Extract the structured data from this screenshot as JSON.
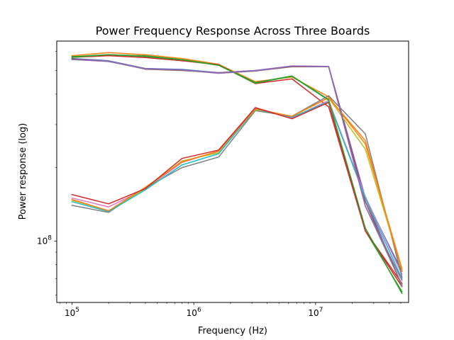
{
  "chart_data": {
    "type": "line",
    "title": "Power Frequency Response Across Three Boards",
    "xlabel": "Frequency (Hz)",
    "ylabel": "Power response (log)",
    "xscale": "log",
    "yscale": "log",
    "xlim": [
      75000,
      58000000
    ],
    "ylim": [
      56000000,
      660000000
    ],
    "grid": false,
    "legend": "none",
    "x_ticks": [
      {
        "value": 100000,
        "base": "10",
        "exp": "5"
      },
      {
        "value": 1000000,
        "base": "10",
        "exp": "6"
      },
      {
        "value": 10000000,
        "base": "10",
        "exp": "7"
      }
    ],
    "y_ticks": [
      {
        "value": 100000000,
        "base": "10",
        "exp": "8"
      }
    ],
    "x": [
      100000,
      200000,
      400000,
      800000,
      1600000,
      3200000,
      6400000,
      12800000,
      25600000,
      51200000
    ],
    "series": [
      {
        "color": "#1f77b4",
        "values": [
          560000000,
          548000000,
          510000000,
          505000000,
          490000000,
          500000000,
          520000000,
          520000000,
          150000000,
          75000000
        ]
      },
      {
        "color": "#ff7f0e",
        "values": [
          575000000,
          592000000,
          580000000,
          560000000,
          530000000,
          450000000,
          470000000,
          390000000,
          250000000,
          77000000
        ]
      },
      {
        "color": "#2ca02c",
        "values": [
          570000000,
          580000000,
          574000000,
          554000000,
          527000000,
          446000000,
          475000000,
          380000000,
          110000000,
          62000000
        ]
      },
      {
        "color": "#d62728",
        "values": [
          566000000,
          575000000,
          565000000,
          548000000,
          528000000,
          442000000,
          462000000,
          355000000,
          110000000,
          65000000
        ]
      },
      {
        "color": "#9467bd",
        "values": [
          556000000,
          544000000,
          508000000,
          502000000,
          490000000,
          500000000,
          522000000,
          520000000,
          150000000,
          65000000
        ]
      },
      {
        "color": "#8c564b",
        "values": [
          558000000,
          546000000,
          506000000,
          500000000,
          489000000,
          498000000,
          518000000,
          518000000,
          145000000,
          66000000
        ]
      },
      {
        "color": "#e377c2",
        "values": [
          150000000,
          138000000,
          163000000,
          210000000,
          233000000,
          352000000,
          320000000,
          377000000,
          152000000,
          73000000
        ]
      },
      {
        "color": "#7f7f7f",
        "values": [
          140000000,
          131000000,
          165000000,
          200000000,
          221000000,
          342000000,
          325000000,
          394000000,
          275000000,
          71000000
        ]
      },
      {
        "color": "#bcbd22",
        "values": [
          147000000,
          133000000,
          164000000,
          213000000,
          230000000,
          345000000,
          325000000,
          386000000,
          238000000,
          76000000
        ]
      },
      {
        "color": "#17becf",
        "values": [
          145000000,
          132000000,
          162000000,
          205000000,
          228000000,
          347000000,
          322000000,
          372000000,
          150000000,
          70000000
        ]
      },
      {
        "color": "#ff7f0e",
        "values": [
          148000000,
          133000000,
          166000000,
          211000000,
          234000000,
          348000000,
          324000000,
          387000000,
          258000000,
          75000000
        ]
      },
      {
        "color": "#d62728",
        "values": [
          155000000,
          142000000,
          164000000,
          218000000,
          236000000,
          352000000,
          317000000,
          370000000,
          110000000,
          67000000
        ]
      },
      {
        "color": "#2ca02c",
        "values": [
          566000000,
          581000000,
          571000000,
          553000000,
          525000000,
          444000000,
          473000000,
          378000000,
          113000000,
          61000000
        ]
      },
      {
        "color": "#7f7f7f",
        "values": [
          554000000,
          545000000,
          507000000,
          502000000,
          487000000,
          497000000,
          521000000,
          518000000,
          139000000,
          66000000
        ]
      },
      {
        "color": "#9467bd",
        "values": [
          555000000,
          546000000,
          509000000,
          503000000,
          488000000,
          499000000,
          522000000,
          519000000,
          139000000,
          69000000
        ]
      }
    ]
  }
}
